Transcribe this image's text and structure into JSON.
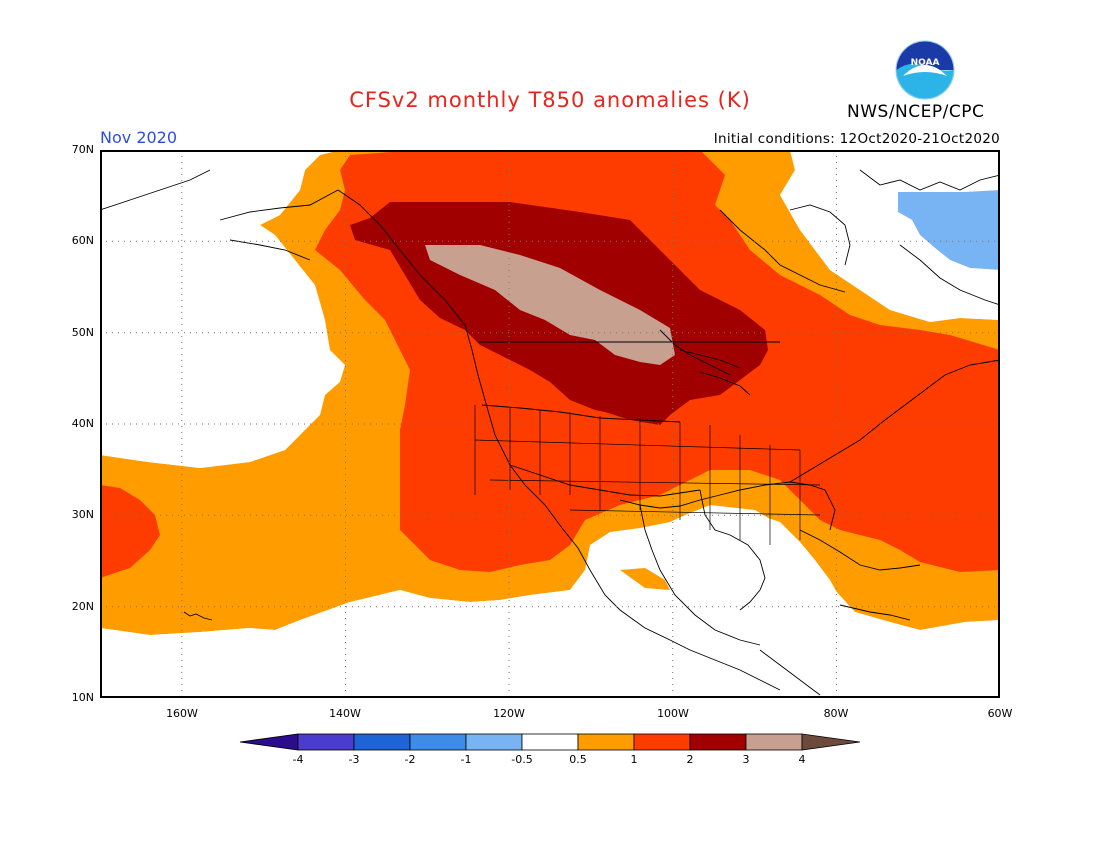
{
  "header": {
    "title": "CFSv2 monthly T850 anomalies (K)",
    "org": "NWS/NCEP/CPC",
    "logo_text": "NOAA",
    "month": "Nov 2020",
    "initial_conditions": "Initial conditions: 12Oct2020-21Oct2020"
  },
  "axes": {
    "lat_labels": [
      "70N",
      "60N",
      "50N",
      "40N",
      "30N",
      "20N",
      "10N"
    ],
    "lon_labels": [
      "160W",
      "140W",
      "120W",
      "100W",
      "80W",
      "60W"
    ]
  },
  "legend": {
    "ticks": [
      "-4",
      "-3",
      "-2",
      "-1",
      "-0.5",
      "0.5",
      "1",
      "2",
      "3",
      "4"
    ],
    "colors": [
      "#2a0c8c",
      "#4a3ccc",
      "#1f64d4",
      "#3c8ce8",
      "#78b4f4",
      "#ffffff",
      "#ff9c00",
      "#ff3c00",
      "#a00000",
      "#c8a090",
      "#6e4a3c"
    ]
  },
  "colors": {
    "orange": "#ff9c00",
    "red_orange": "#ff3c00",
    "dark_red": "#a00000",
    "tan": "#c8a090",
    "light_blue": "#78b4f4",
    "title_red": "#e8241c",
    "month_blue": "#2b4de0"
  }
}
